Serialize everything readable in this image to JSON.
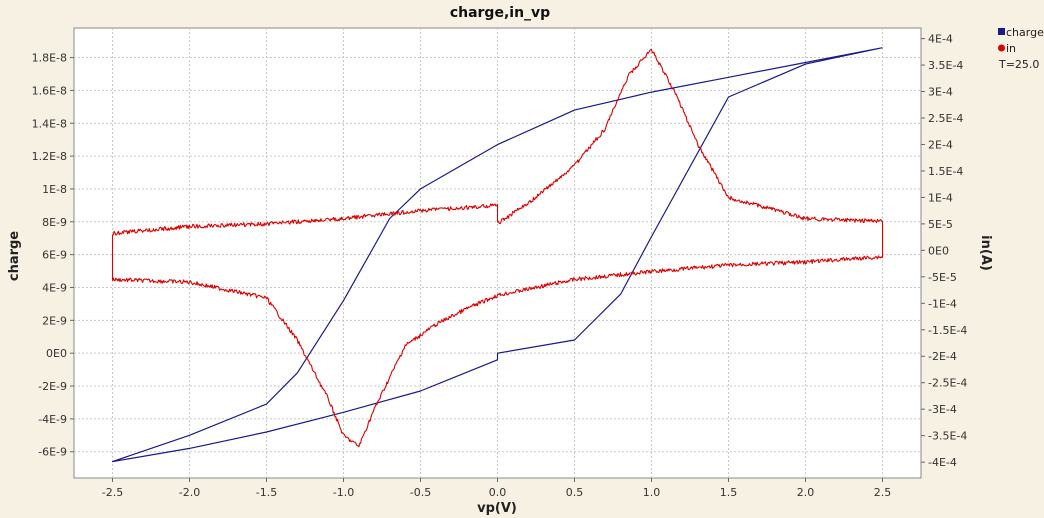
{
  "chart_data": {
    "type": "line",
    "title": "charge,in_vp",
    "xlabel": "vp(V)",
    "ylabel_left": "charge",
    "ylabel_right": "in(A)",
    "xlim": [
      -2.75,
      2.75
    ],
    "ylim_left": [
      -7.6e-09,
      1.98e-08
    ],
    "ylim_right": [
      -0.00043,
      0.00042
    ],
    "x_ticks": [
      "-2.5",
      "-2.0",
      "-1.5",
      "-1.0",
      "-0.5",
      "0.0",
      "0.5",
      "1.0",
      "1.5",
      "2.0",
      "2.5"
    ],
    "x_tick_values": [
      -2.5,
      -2.0,
      -1.5,
      -1.0,
      -0.5,
      0.0,
      0.5,
      1.0,
      1.5,
      2.0,
      2.5
    ],
    "y_left_ticks": [
      "-6E-9",
      "-4E-9",
      "-2E-9",
      "0E0",
      "2E-9",
      "4E-9",
      "6E-9",
      "8E-9",
      "1E-8",
      "1.2E-8",
      "1.4E-8",
      "1.6E-8",
      "1.8E-8"
    ],
    "y_left_tick_values": [
      -6e-09,
      -4e-09,
      -2e-09,
      0,
      2e-09,
      4e-09,
      6e-09,
      8e-09,
      1e-08,
      1.2e-08,
      1.4e-08,
      1.6e-08,
      1.8e-08
    ],
    "y_right_ticks": [
      "-4E-4",
      "-3.5E-4",
      "-3E-4",
      "-2.5E-4",
      "-2E-4",
      "-1.5E-4",
      "-1E-4",
      "-5E-5",
      "0E0",
      "5E-5",
      "1E-4",
      "1.5E-4",
      "2E-4",
      "2.5E-4",
      "3E-4",
      "3.5E-4",
      "4E-4"
    ],
    "y_right_tick_values": [
      -0.0004,
      -0.00035,
      -0.0003,
      -0.00025,
      -0.0002,
      -0.00015,
      -0.0001,
      -5e-05,
      0,
      5e-05,
      0.0001,
      0.00015,
      0.0002,
      0.00025,
      0.0003,
      0.00035,
      0.0004
    ],
    "grid": true,
    "legend_position": "top-right",
    "legend_note": "T=25.0",
    "series": [
      {
        "name": "charge",
        "axis": "left",
        "color": "#1a1a8c",
        "marker": "square",
        "x": [
          2.5,
          2.0,
          1.5,
          1.0,
          0.5,
          0.0,
          -0.5,
          -0.7,
          -1.0,
          -1.3,
          -1.5,
          -2.0,
          -2.5,
          -2.0,
          -1.5,
          -1.0,
          -0.5,
          0.0,
          0.0,
          0.5,
          0.8,
          1.0,
          1.5,
          2.0,
          2.5
        ],
        "values": [
          1.86e-08,
          1.77e-08,
          1.68e-08,
          1.59e-08,
          1.48e-08,
          1.27e-08,
          1e-08,
          8.2e-09,
          3.2e-09,
          -1.2e-09,
          -3.1e-09,
          -5e-09,
          -6.6e-09,
          -5.8e-09,
          -4.8e-09,
          -3.6e-09,
          -2.3e-09,
          -4e-10,
          0.0,
          8e-10,
          3.6e-09,
          7.1e-09,
          1.56e-08,
          1.76e-08,
          1.86e-08
        ]
      },
      {
        "name": "in",
        "axis": "right",
        "color": "#dd0000",
        "marker": "circle",
        "x": [
          2.5,
          2.0,
          1.5,
          1.3,
          1.15,
          1.0,
          0.85,
          0.7,
          0.5,
          0.25,
          0.0,
          0.0,
          -0.5,
          -1.0,
          -1.5,
          -2.0,
          -2.5,
          -2.5,
          -2.5,
          -2.0,
          -1.5,
          -1.3,
          -1.1,
          -1.0,
          -0.9,
          -0.8,
          -0.6,
          -0.4,
          -0.2,
          0.0,
          0.5,
          1.0,
          1.5,
          2.0,
          2.5,
          2.5
        ],
        "values": [
          5.5e-05,
          6e-05,
          0.0001,
          0.0002,
          0.0003,
          0.00038,
          0.00033,
          0.00023,
          0.00016,
          0.0001,
          5e-05,
          8.5e-05,
          7.5e-05,
          6e-05,
          5e-05,
          4.5e-05,
          3.2e-05,
          0.0,
          -5.5e-05,
          -6e-05,
          -9e-05,
          -0.00017,
          -0.00028,
          -0.00035,
          -0.00037,
          -0.0003,
          -0.00018,
          -0.00014,
          -0.00011,
          -8.5e-05,
          -5.5e-05,
          -4e-05,
          -2.8e-05,
          -2.2e-05,
          -1.2e-05,
          5.5e-05
        ]
      }
    ]
  }
}
